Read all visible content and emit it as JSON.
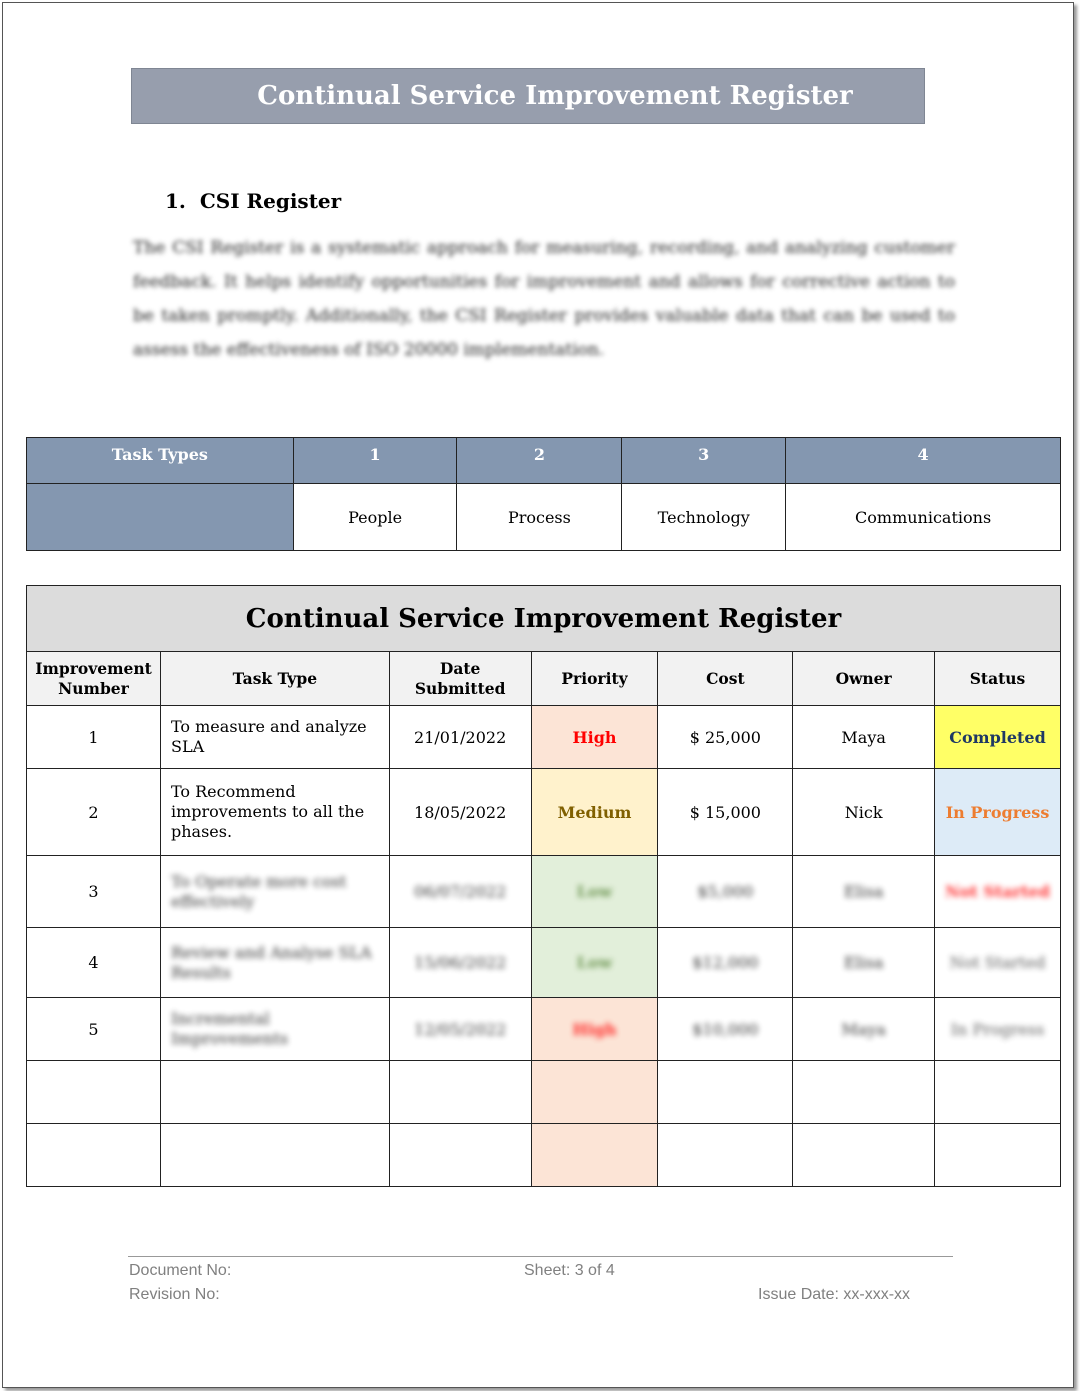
{
  "title": "Continual Service Improvement Register",
  "section": {
    "number": "1.",
    "heading": "CSI Register",
    "paragraph": "The CSI Register is a systematic approach for measuring, recording, and analyzing customer feedback. It helps identify opportunities for improvement and allows for corrective action to be taken promptly. Additionally, the CSI Register provides valuable data that can be used to assess the effectiveness of ISO 20000 implementation."
  },
  "task_types": {
    "header": "Task Types",
    "numbers": [
      "1",
      "2",
      "3",
      "4"
    ],
    "names": [
      "People",
      "Process",
      "Technology",
      "Communications"
    ]
  },
  "register": {
    "title": "Continual Service Improvement Register",
    "columns": [
      "Improvement Number",
      "Task Type",
      "Date Submitted",
      "Priority",
      "Cost",
      "Owner",
      "Status"
    ],
    "rows": [
      {
        "num": "1",
        "task": "To measure and analyze SLA",
        "date": "21/01/2022",
        "priority": "High",
        "cost": "$ 25,000",
        "owner": "Maya",
        "status": "Completed"
      },
      {
        "num": "2",
        "task": "To Recommend improvements to all the phases.",
        "date": "18/05/2022",
        "priority": "Medium",
        "cost": "$ 15,000",
        "owner": "Nick",
        "status": "In Progress"
      },
      {
        "num": "3",
        "task": "To Operate more cost effectively",
        "date": "06/07/2022",
        "priority": "Low",
        "cost": "$5,000",
        "owner": "Elisa",
        "status": "Not Started"
      },
      {
        "num": "4",
        "task": "Review and Analyse SLA Results",
        "date": "15/06/2022",
        "priority": "Low",
        "cost": "$12,000",
        "owner": "Elisa",
        "status": "Not Started"
      },
      {
        "num": "5",
        "task": "Incremental Improvements",
        "date": "12/05/2022",
        "priority": "High",
        "cost": "$10,000",
        "owner": "Maya",
        "status": "In Progress"
      }
    ]
  },
  "colors": {
    "high": "#ff0000",
    "medium": "#806000",
    "low": "#548235",
    "completed": "#1f3864",
    "in_progress": "#ed7d31",
    "not_started": "#ff0000"
  },
  "footer": {
    "document_no": "Document No:",
    "revision_no": "Revision No:",
    "sheet": "Sheet: 3 of 4",
    "issue_date": "Issue Date: xx-xxx-xx"
  }
}
